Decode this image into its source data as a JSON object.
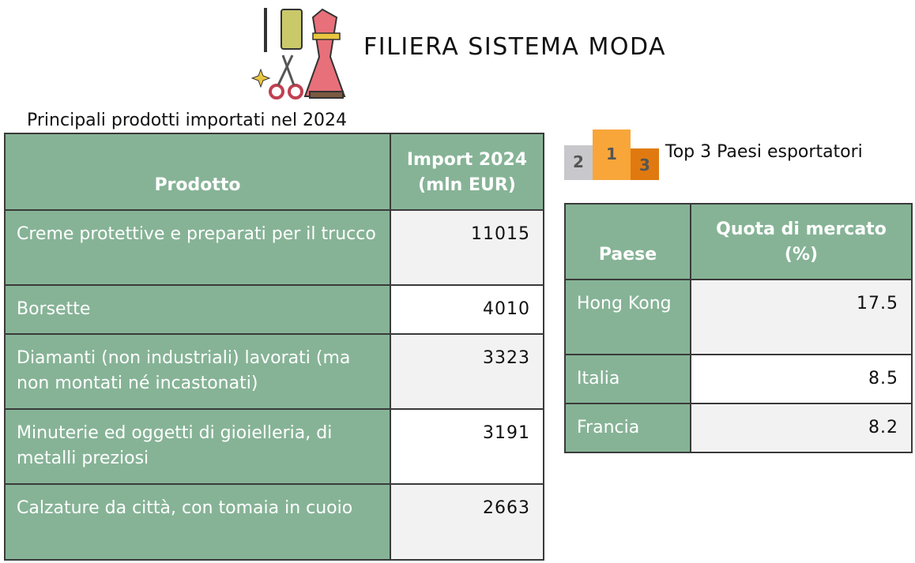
{
  "header": {
    "title": "FILIERA SISTEMA MODA"
  },
  "products": {
    "caption": "Principali prodotti importati nel 2024",
    "columns": [
      "Prodotto",
      "Import 2024 (mln EUR)"
    ],
    "rows": [
      [
        "Creme protettive e preparati per il trucco",
        "11015"
      ],
      [
        "Borsette",
        "4010"
      ],
      [
        "Diamanti (non industriali) lavorati (ma non montati né incastonati)",
        "3323"
      ],
      [
        "Minuterie ed oggetti di gioielleria, di metalli preziosi",
        "3191"
      ],
      [
        "Calzature da città, con tomaia in cuoio",
        "2663"
      ]
    ]
  },
  "countries": {
    "caption": "Top 3 Paesi esportatori",
    "columns": [
      "Paese",
      "Quota di mercato (%)"
    ],
    "rows": [
      [
        "Hong Kong",
        "17.5"
      ],
      [
        "Italia",
        "8.5"
      ],
      [
        "Francia",
        "8.2"
      ]
    ]
  }
}
